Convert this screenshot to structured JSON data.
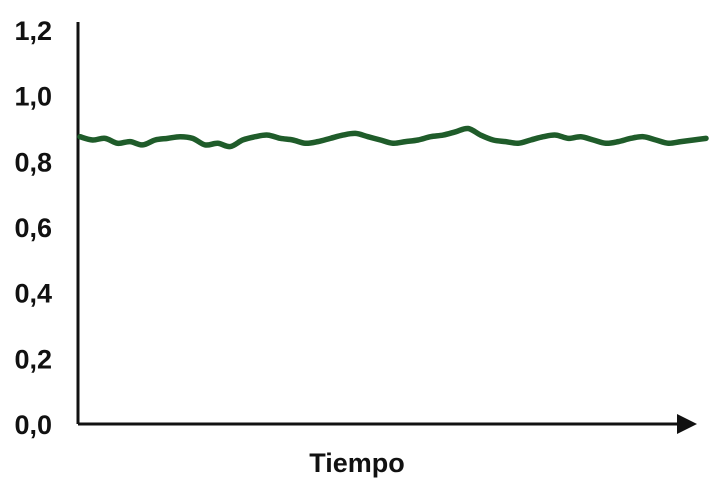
{
  "chart_data": {
    "type": "line",
    "title": "",
    "xlabel": "Tiempo",
    "ylabel": "",
    "ylim": [
      0,
      1.2
    ],
    "yticks": [
      "0,0",
      "0,2",
      "0,4",
      "0,6",
      "0,8",
      "1,0",
      "1,2"
    ],
    "xlim": [
      0,
      100
    ],
    "grid": false,
    "legend": "none",
    "x_axis_arrow": true,
    "series": [
      {
        "color": "#1f5c2a",
        "x": [
          0,
          2,
          4,
          6,
          8,
          10,
          12,
          14,
          16,
          18,
          20,
          22,
          24,
          26,
          28,
          30,
          32,
          34,
          36,
          38,
          40,
          42,
          44,
          46,
          48,
          50,
          52,
          54,
          56,
          58,
          60,
          62,
          64,
          66,
          68,
          70,
          72,
          74,
          76,
          78,
          80,
          82,
          84,
          86,
          88,
          90,
          92,
          94,
          96,
          98,
          100
        ],
        "y": [
          0.875,
          0.865,
          0.87,
          0.855,
          0.86,
          0.85,
          0.865,
          0.87,
          0.875,
          0.87,
          0.85,
          0.855,
          0.845,
          0.865,
          0.875,
          0.88,
          0.87,
          0.865,
          0.855,
          0.86,
          0.87,
          0.88,
          0.885,
          0.875,
          0.865,
          0.855,
          0.86,
          0.865,
          0.875,
          0.88,
          0.89,
          0.9,
          0.88,
          0.865,
          0.86,
          0.855,
          0.865,
          0.875,
          0.88,
          0.87,
          0.875,
          0.865,
          0.855,
          0.86,
          0.87,
          0.875,
          0.865,
          0.855,
          0.86,
          0.865,
          0.87
        ]
      }
    ]
  }
}
